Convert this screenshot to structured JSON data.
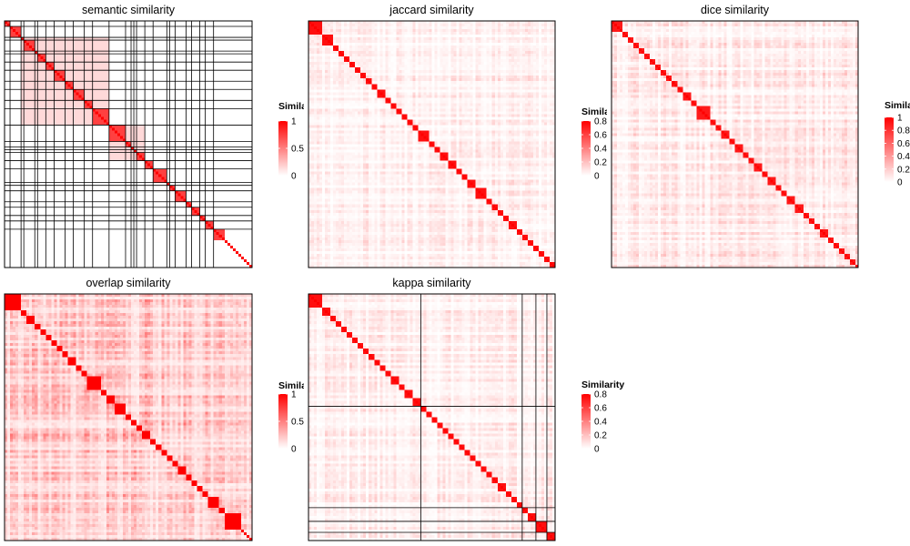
{
  "colors": {
    "low": "#ffffff",
    "high": "#ff0000",
    "separator": "#000000"
  },
  "chart_data": [
    {
      "type": "heatmap",
      "title": "semantic similarity",
      "n": 90,
      "clusters": [
        2,
        4,
        1,
        4,
        1,
        3,
        3,
        4,
        3,
        4,
        3,
        6,
        6,
        2,
        1,
        1,
        3,
        3,
        5,
        1,
        2,
        4,
        2,
        3,
        2,
        3,
        4
      ],
      "block_groups": [
        [
          2,
          12
        ],
        [
          12,
          17
        ],
        [
          21,
          22
        ]
      ],
      "show_separators": true,
      "diag_value": 1.0,
      "cluster_value": 0.75,
      "group_value": 0.15,
      "background_value": 0.0,
      "legend": {
        "title": "Similarity",
        "ticks": [
          "1",
          "0.5",
          "0"
        ],
        "range": [
          0,
          1
        ]
      }
    },
    {
      "type": "heatmap",
      "title": "jaccard similarity",
      "n": 90,
      "clusters": [
        5,
        4,
        2,
        2,
        2,
        2,
        2,
        2,
        2,
        2,
        3,
        2,
        2,
        2,
        2,
        2,
        2,
        4,
        2,
        2,
        3,
        3,
        2,
        2,
        3,
        4,
        2,
        2,
        2,
        2,
        3,
        2,
        2,
        2,
        2,
        2,
        2,
        3
      ],
      "show_separators": false,
      "diag_value": 0.85,
      "cluster_value": 0.8,
      "noise_low": 0.0,
      "noise_high": 0.2,
      "legend": {
        "title": "Similarity",
        "ticks": [
          "0.8",
          "0.6",
          "0.4",
          "0.2",
          "0"
        ],
        "range": [
          0,
          0.85
        ]
      }
    },
    {
      "type": "heatmap",
      "title": "dice similarity",
      "n": 90,
      "clusters": [
        4,
        2,
        2,
        2,
        2,
        2,
        2,
        2,
        2,
        2,
        2,
        2,
        3,
        2,
        5,
        2,
        2,
        3,
        2,
        3,
        2,
        2,
        3,
        2,
        3,
        2,
        2,
        3,
        3,
        2,
        2,
        2,
        3,
        2,
        2,
        2,
        2,
        2,
        2,
        2
      ],
      "show_separators": false,
      "diag_value": 1.0,
      "cluster_value": 0.9,
      "noise_low": 0.0,
      "noise_high": 0.3,
      "legend": {
        "title": "Similarity",
        "ticks": [
          "1",
          "0.8",
          "0.6",
          "0.4",
          "0.2",
          "0"
        ],
        "range": [
          0,
          1
        ]
      }
    },
    {
      "type": "heatmap",
      "title": "overlap similarity",
      "n": 90,
      "clusters": [
        6,
        2,
        3,
        2,
        2,
        2,
        2,
        2,
        2,
        3,
        2,
        2,
        5,
        2,
        3,
        4,
        2,
        2,
        2,
        3,
        2,
        2,
        2,
        2,
        2,
        3,
        2,
        2,
        2,
        2,
        4,
        2,
        6
      ],
      "show_separators": false,
      "diag_value": 1.0,
      "cluster_value": 1.0,
      "noise_low": 0.05,
      "noise_high": 0.6,
      "legend": {
        "title": "Similarity",
        "ticks": [
          "1",
          "0.5",
          "0"
        ],
        "range": [
          0,
          1
        ]
      }
    },
    {
      "type": "heatmap",
      "title": "kappa similarity",
      "n": 90,
      "clusters": [
        5,
        3,
        2,
        2,
        2,
        2,
        2,
        2,
        2,
        2,
        2,
        2,
        2,
        3,
        2,
        3,
        3,
        2,
        2,
        2,
        2,
        2,
        2,
        2,
        2,
        2,
        2,
        2,
        2,
        2,
        2,
        3,
        2,
        2,
        2,
        2,
        3,
        4,
        3
      ],
      "separator_positions": [
        41,
        78,
        83,
        87
      ],
      "show_separators": true,
      "diag_value": 0.85,
      "cluster_value": 0.8,
      "noise_low": 0.0,
      "noise_high": 0.2,
      "legend": {
        "title": "Similarity",
        "ticks": [
          "0.8",
          "0.6",
          "0.4",
          "0.2",
          "0"
        ],
        "range": [
          0,
          0.85
        ]
      }
    }
  ]
}
